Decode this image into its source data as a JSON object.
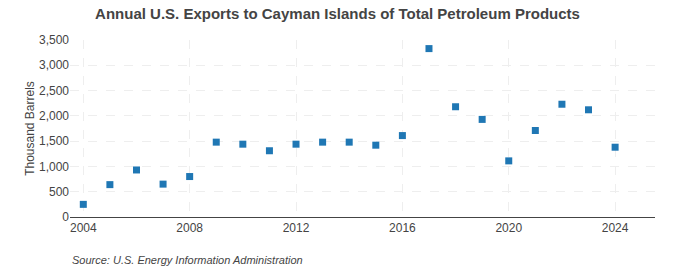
{
  "chart_data": {
    "type": "scatter",
    "title": "Annual U.S. Exports to Cayman Islands of Total Petroleum Products",
    "ylabel": "Thousand Barrels",
    "annotations": [
      "Source: U.S. Energy Information Administration"
    ],
    "x": [
      2004,
      2005,
      2006,
      2007,
      2008,
      2009,
      2010,
      2011,
      2012,
      2013,
      2014,
      2015,
      2016,
      2017,
      2018,
      2019,
      2020,
      2021,
      2022,
      2023,
      2024
    ],
    "values": [
      250,
      640,
      930,
      650,
      800,
      1480,
      1440,
      1310,
      1440,
      1480,
      1480,
      1420,
      1610,
      3330,
      2180,
      1930,
      1110,
      1710,
      2230,
      2120,
      1380
    ],
    "marker": "square",
    "xlim": [
      2003.5,
      2025.5
    ],
    "xticks": [
      2004,
      2008,
      2012,
      2016,
      2020,
      2024
    ],
    "ylim": [
      0,
      3500
    ],
    "yticks": [
      0,
      500,
      {
        "value": 1000,
        "label": "1,000"
      },
      {
        "value": 1500,
        "label": "1,500"
      },
      {
        "value": 2000,
        "label": "2,000"
      },
      {
        "value": 2500,
        "label": "2,500"
      },
      {
        "value": 3000,
        "label": "3,000"
      },
      {
        "value": 3500,
        "label": "3,500"
      }
    ],
    "grid": true
  }
}
